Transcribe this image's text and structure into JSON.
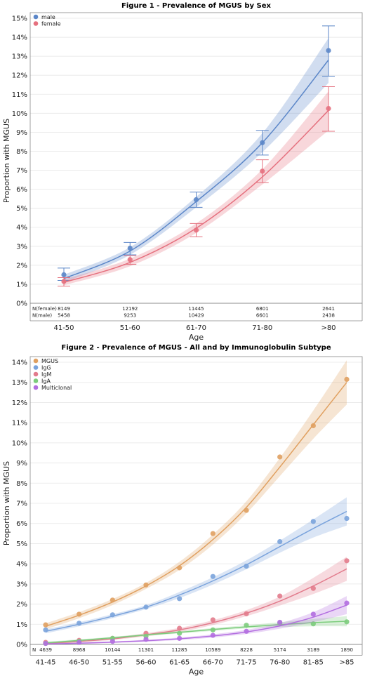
{
  "chart_data": [
    {
      "type": "scatter",
      "title": "Figure 1 - Prevalence of MGUS by Sex",
      "xlabel": "Age",
      "ylabel": "Proportion with MGUS",
      "categories": [
        "41-50",
        "51-60",
        "61-70",
        "71-80",
        ">80"
      ],
      "ylim": [
        0,
        15
      ],
      "yticks": [
        "0%",
        "1%",
        "2%",
        "3%",
        "4%",
        "5%",
        "6%",
        "7%",
        "8%",
        "9%",
        "10%",
        "11%",
        "12%",
        "13%",
        "14%",
        "15%"
      ],
      "grid": true,
      "legend_position": "top-left",
      "error_bars": true,
      "fit": "curve with confidence band",
      "series": [
        {
          "name": "male",
          "color": "#5b86c8",
          "values": [
            1.5,
            2.9,
            5.45,
            8.45,
            13.3
          ],
          "err_low": [
            1.2,
            2.55,
            5.05,
            7.8,
            11.95
          ],
          "err_high": [
            1.85,
            3.2,
            5.85,
            9.1,
            14.6
          ],
          "fit": [
            1.3,
            2.75,
            5.35,
            8.45,
            12.8
          ],
          "band_low": [
            1.1,
            2.55,
            5.05,
            7.95,
            11.6
          ],
          "band_high": [
            1.5,
            2.95,
            5.6,
            8.95,
            13.95
          ]
        },
        {
          "name": "female",
          "color": "#e5707e",
          "values": [
            1.15,
            2.3,
            3.85,
            6.95,
            10.25
          ],
          "err_low": [
            0.9,
            2.05,
            3.5,
            6.35,
            9.05
          ],
          "err_high": [
            1.35,
            2.5,
            4.2,
            7.55,
            11.4
          ],
          "fit": [
            1.1,
            2.15,
            3.95,
            6.65,
            10.15
          ],
          "band_low": [
            0.95,
            1.95,
            3.7,
            6.25,
            9.1
          ],
          "band_high": [
            1.25,
            2.35,
            4.2,
            7.05,
            11.15
          ]
        }
      ],
      "n_rows": [
        {
          "label": "N(female)",
          "values": [
            "8149",
            "12192",
            "11445",
            "6801",
            "2641"
          ]
        },
        {
          "label": "N(male)",
          "values": [
            "5458",
            "9253",
            "10429",
            "6601",
            "2438"
          ]
        }
      ]
    },
    {
      "type": "scatter",
      "title": "Figure 2 - Prevalence of MGUS - All and by Immunoglobulin Subtype",
      "xlabel": "Age",
      "ylabel": "Proportion with MGUS",
      "categories": [
        "41-45",
        "46-50",
        "51-55",
        "56-60",
        "61-65",
        "66-70",
        "71-75",
        "76-80",
        "81-85",
        ">85"
      ],
      "ylim": [
        0,
        14
      ],
      "yticks": [
        "0%",
        "1%",
        "2%",
        "3%",
        "4%",
        "5%",
        "6%",
        "7%",
        "8%",
        "9%",
        "10%",
        "11%",
        "12%",
        "13%",
        "14%"
      ],
      "grid": true,
      "legend_position": "top-left",
      "fit": "curve with confidence band",
      "series": [
        {
          "name": "MGUS",
          "color": "#e0a060",
          "values": [
            0.97,
            1.5,
            2.2,
            2.95,
            3.8,
            5.5,
            6.65,
            9.3,
            10.85,
            13.15
          ],
          "fit": [
            0.9,
            1.45,
            2.1,
            2.9,
            3.9,
            5.2,
            6.8,
            8.8,
            10.9,
            13.0
          ],
          "band_w": [
            0.15,
            0.15,
            0.15,
            0.15,
            0.2,
            0.25,
            0.3,
            0.45,
            0.7,
            1.1
          ]
        },
        {
          "name": "IgG",
          "color": "#7aa3dc",
          "values": [
            0.72,
            1.05,
            1.47,
            1.85,
            2.27,
            3.37,
            3.88,
            5.1,
            6.1,
            6.25
          ],
          "fit": [
            0.65,
            1.0,
            1.4,
            1.85,
            2.45,
            3.15,
            3.95,
            4.85,
            5.75,
            6.6
          ],
          "band_w": [
            0.1,
            0.1,
            0.1,
            0.1,
            0.15,
            0.18,
            0.22,
            0.3,
            0.45,
            0.7
          ]
        },
        {
          "name": "IgM",
          "color": "#e27b8c",
          "values": [
            0.1,
            0.2,
            0.3,
            0.55,
            0.8,
            1.22,
            1.52,
            2.4,
            2.78,
            4.15
          ],
          "fit": [
            0.05,
            0.15,
            0.28,
            0.48,
            0.72,
            1.08,
            1.55,
            2.15,
            2.9,
            3.75
          ],
          "band_w": [
            0.05,
            0.05,
            0.06,
            0.08,
            0.1,
            0.12,
            0.15,
            0.22,
            0.4,
            0.6
          ]
        },
        {
          "name": "IgA",
          "color": "#7ccc7c",
          "values": [
            0.05,
            0.15,
            0.3,
            0.4,
            0.55,
            0.72,
            0.95,
            1.05,
            1.02,
            1.12
          ],
          "fit": [
            0.08,
            0.2,
            0.33,
            0.47,
            0.6,
            0.74,
            0.87,
            0.98,
            1.08,
            1.15
          ],
          "band_w": [
            0.05,
            0.05,
            0.05,
            0.05,
            0.06,
            0.07,
            0.08,
            0.12,
            0.18,
            0.25
          ]
        },
        {
          "name": "Multiclonal",
          "color": "#b36ee0",
          "values": [
            0.05,
            0.1,
            0.15,
            0.25,
            0.3,
            0.45,
            0.65,
            1.1,
            1.5,
            2.05
          ],
          "fit": [
            0.02,
            0.06,
            0.11,
            0.18,
            0.28,
            0.42,
            0.62,
            0.92,
            1.35,
            1.95
          ],
          "band_w": [
            0.03,
            0.03,
            0.04,
            0.05,
            0.06,
            0.08,
            0.1,
            0.14,
            0.25,
            0.45
          ]
        }
      ],
      "n_rows": [
        {
          "label": "N",
          "values": [
            "4639",
            "8968",
            "10144",
            "11301",
            "11285",
            "10589",
            "8228",
            "5174",
            "3189",
            "1890"
          ]
        }
      ]
    }
  ]
}
